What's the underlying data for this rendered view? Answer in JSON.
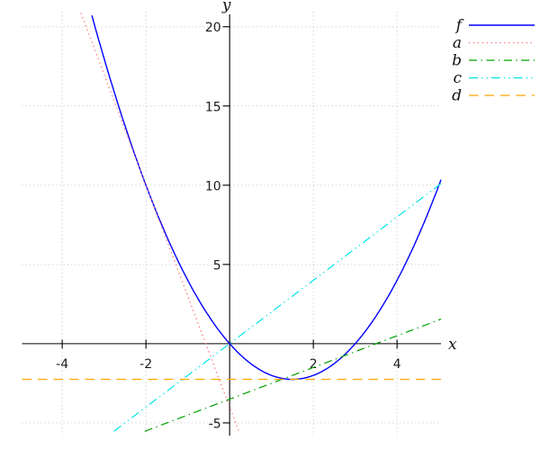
{
  "figure": {
    "background": "#ffffff",
    "axis_color": "#000000",
    "grid_color": "#c3c3c3",
    "tick_label_color": "#1c1c1c"
  },
  "chart_data": {
    "type": "line",
    "title": "",
    "xlabel": "x",
    "ylabel": "y",
    "xlim": [
      -4.96,
      5.05
    ],
    "ylim": [
      -5.8,
      20.95
    ],
    "x_ticks": [
      -4,
      -2,
      2,
      4
    ],
    "y_ticks": [
      20,
      15,
      10,
      5,
      -5
    ],
    "grid": "dotted",
    "legend_position": "top-right",
    "series": [
      {
        "name": "f",
        "expr": "x^2 - 3x",
        "poly": [
          0,
          -3,
          1
        ],
        "color": "#0000ff",
        "style": "solid",
        "width": 1.4,
        "key_points": [
          [
            -2,
            10
          ],
          [
            0,
            0
          ],
          [
            1.5,
            -2.25
          ],
          [
            3,
            0
          ],
          [
            5,
            10
          ]
        ]
      },
      {
        "name": "a",
        "expr": "-7x - 4",
        "poly": [
          -4,
          -7
        ],
        "color": "#ff6e6e",
        "style": "dotted",
        "width": 1.3,
        "key_points": [
          [
            -2,
            10
          ],
          [
            -0.571,
            0
          ]
        ]
      },
      {
        "name": "b",
        "expr": "x - 3.5",
        "poly": [
          -3.5,
          1
        ],
        "color": "#00a000",
        "style": "dashdot",
        "width": 1.2,
        "key_points": [
          [
            0,
            -3.5
          ],
          [
            3.5,
            0
          ]
        ]
      },
      {
        "name": "c",
        "expr": "2x",
        "poly": [
          0,
          2
        ],
        "color": "#00e5e5",
        "style": "dashdotdot",
        "width": 1.2,
        "key_points": [
          [
            0,
            0
          ],
          [
            5,
            10
          ]
        ]
      },
      {
        "name": "d",
        "expr": "-2.25",
        "poly": [
          -2.25
        ],
        "color": "#ffa500",
        "style": "dashed",
        "width": 1.2,
        "key_points": [
          [
            1.5,
            -2.25
          ]
        ]
      }
    ]
  }
}
